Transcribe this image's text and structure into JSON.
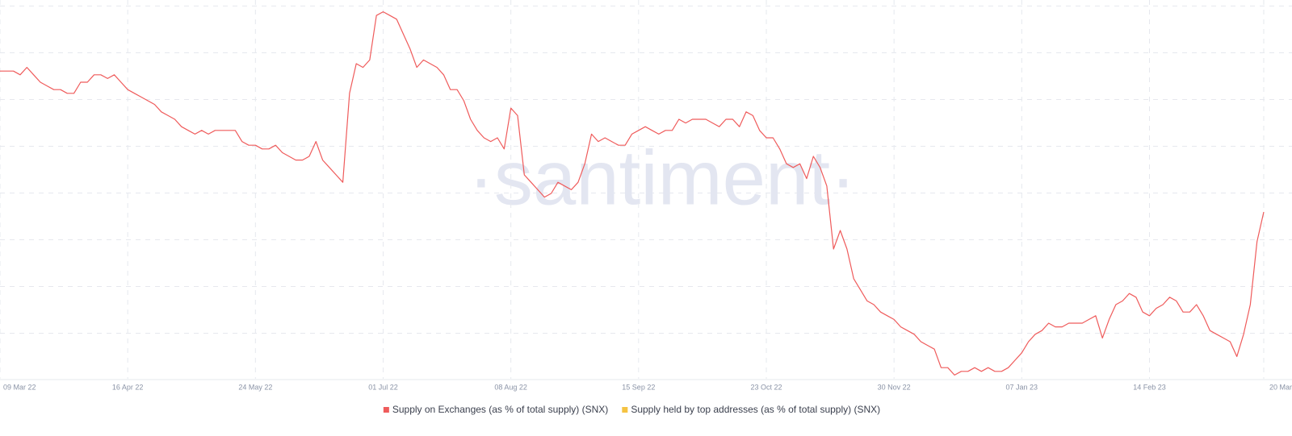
{
  "chart_data": {
    "type": "line",
    "watermark": "·santiment·",
    "ylim": [
      0,
      100
    ],
    "categories": [
      "09 Mar 22",
      null,
      null,
      null,
      null,
      null,
      null,
      null,
      null,
      null,
      null,
      null,
      null,
      null,
      null,
      null,
      null,
      null,
      null,
      "16 Apr 22",
      null,
      null,
      null,
      null,
      null,
      null,
      null,
      null,
      null,
      null,
      null,
      null,
      null,
      null,
      null,
      null,
      null,
      null,
      "24 May 22",
      null,
      null,
      null,
      null,
      null,
      null,
      null,
      null,
      null,
      null,
      null,
      null,
      null,
      null,
      null,
      null,
      null,
      null,
      "01 Jul 22",
      null,
      null,
      null,
      null,
      null,
      null,
      null,
      null,
      null,
      null,
      null,
      null,
      null,
      null,
      null,
      null,
      null,
      null,
      "08 Aug 22",
      null,
      null,
      null,
      null,
      null,
      null,
      null,
      null,
      null,
      null,
      null,
      null,
      null,
      null,
      null,
      null,
      null,
      null,
      "15 Sep 22",
      null,
      null,
      null,
      null,
      null,
      null,
      null,
      null,
      null,
      null,
      null,
      null,
      null,
      null,
      null,
      null,
      null,
      null,
      "23 Oct 22",
      null,
      null,
      null,
      null,
      null,
      null,
      null,
      null,
      null,
      null,
      null,
      null,
      null,
      null,
      null,
      null,
      null,
      null,
      "30 Nov 22",
      null,
      null,
      null,
      null,
      null,
      null,
      null,
      null,
      null,
      null,
      null,
      null,
      null,
      null,
      null,
      null,
      null,
      null,
      "07 Jan 23",
      null,
      null,
      null,
      null,
      null,
      null,
      null,
      null,
      null,
      null,
      null,
      null,
      null,
      null,
      null,
      null,
      null,
      null,
      "14 Feb 23",
      null,
      null,
      null,
      null,
      null,
      null,
      null,
      null,
      null,
      null,
      null,
      null,
      null,
      null,
      null,
      null,
      "20 Mar"
    ],
    "series": [
      {
        "name": "Supply on Exchanges (as % of total supply) (SNX)",
        "color": "#ef5b5b",
        "values": [
          83,
          83,
          83,
          82,
          84,
          82,
          80,
          79,
          78,
          78,
          77,
          77,
          80,
          80,
          82,
          82,
          81,
          82,
          80,
          78,
          77,
          76,
          75,
          74,
          72,
          71,
          70,
          68,
          67,
          66,
          67,
          66,
          67,
          67,
          67,
          67,
          64,
          63,
          63,
          62,
          62,
          63,
          61,
          60,
          59,
          59,
          60,
          64,
          59,
          57,
          55,
          53,
          77,
          85,
          84,
          86,
          98,
          99,
          98,
          97,
          93,
          89,
          84,
          86,
          85,
          84,
          82,
          78,
          78,
          75,
          70,
          67,
          65,
          64,
          65,
          62,
          73,
          71,
          55,
          53,
          51,
          49,
          50,
          53,
          52,
          51,
          53,
          58,
          66,
          64,
          65,
          64,
          63,
          63,
          66,
          67,
          68,
          67,
          66,
          67,
          67,
          70,
          69,
          70,
          70,
          70,
          69,
          68,
          70,
          70,
          68,
          72,
          71,
          67,
          65,
          65,
          62,
          58,
          57,
          58,
          54,
          60,
          57,
          52,
          35,
          40,
          35,
          27,
          24,
          21,
          20,
          18,
          17,
          16,
          14,
          13,
          12,
          10,
          9,
          8,
          3,
          3,
          1,
          2,
          2,
          3,
          2,
          3,
          2,
          2,
          3,
          5,
          7,
          10,
          12,
          13,
          15,
          14,
          14,
          15,
          15,
          15,
          16,
          17,
          11,
          16,
          20,
          21,
          23,
          22,
          18,
          17,
          19,
          20,
          22,
          21,
          18,
          18,
          20,
          17,
          13,
          12,
          11,
          10,
          6,
          12,
          20,
          37,
          45
        ]
      },
      {
        "name": "Supply held by top addresses (as % of total supply) (SNX)",
        "color": "#f5c342",
        "values": [
          null,
          null,
          null,
          null,
          null,
          null,
          null,
          null,
          null,
          null,
          null,
          null,
          null,
          null,
          null,
          null,
          null,
          null,
          null,
          null,
          null,
          null,
          null,
          null,
          null,
          null,
          null,
          null,
          null,
          null,
          null,
          null,
          null,
          null,
          null,
          null,
          null,
          null,
          null,
          null,
          null,
          null,
          null,
          null,
          null,
          null,
          null,
          null,
          null,
          null,
          null,
          null,
          null,
          null,
          null,
          null,
          null,
          null,
          null,
          null,
          null,
          null,
          null,
          null,
          null,
          null,
          null,
          null,
          null,
          null,
          null,
          null,
          null,
          null,
          null,
          null,
          null,
          null,
          null,
          null,
          null,
          null,
          null,
          null,
          null,
          null,
          null,
          null,
          null,
          null,
          null,
          null,
          null,
          null,
          null,
          null,
          null,
          null,
          null,
          null,
          null,
          null,
          null,
          null,
          null,
          null,
          null,
          null,
          null,
          null,
          null,
          null,
          null,
          null,
          null,
          null,
          null,
          null,
          null,
          null,
          null,
          null,
          null,
          null,
          null,
          null,
          null,
          null,
          null,
          null,
          null,
          null,
          null,
          null,
          null,
          null,
          null,
          null,
          null,
          null,
          null,
          null,
          null,
          null,
          null,
          null,
          null,
          null,
          null,
          null,
          null,
          null,
          null,
          null,
          null,
          null,
          null,
          null,
          null,
          null,
          null,
          null,
          null,
          null,
          null,
          null,
          null,
          null,
          null,
          null,
          null,
          null,
          null,
          null,
          null,
          null,
          null,
          null,
          null,
          null,
          null,
          null,
          null,
          null,
          null,
          null,
          null,
          null,
          null
        ]
      }
    ]
  }
}
